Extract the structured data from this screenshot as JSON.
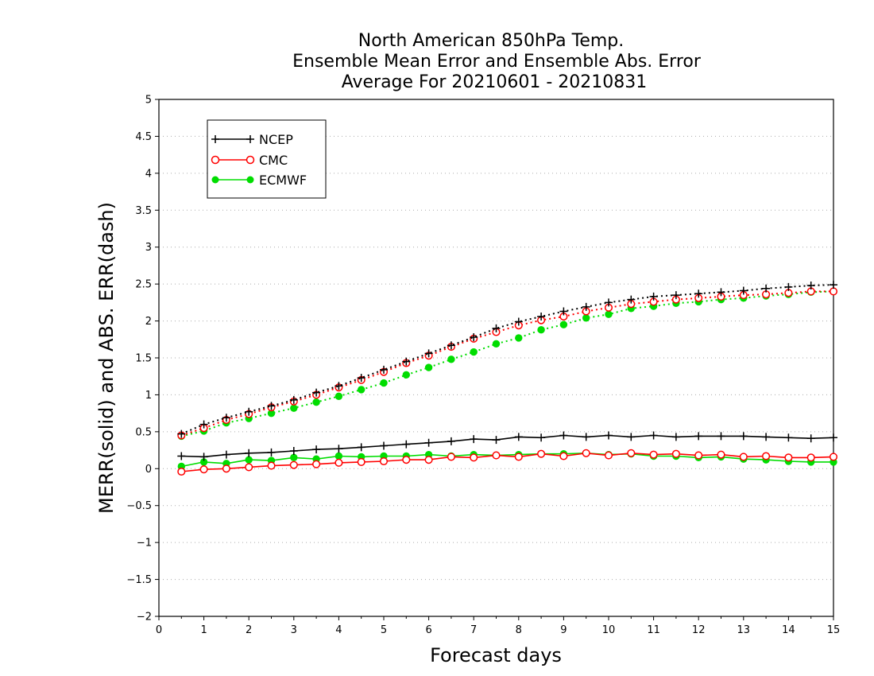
{
  "chart_data": {
    "type": "line",
    "title": [
      "North American 850hPa Temp.",
      "Ensemble Mean Error and Ensemble Abs. Error",
      "Average For 20210601 - 20210831"
    ],
    "xlabel": "Forecast days",
    "ylabel": "MERR(solid) and ABS. ERR(dash)",
    "xlim": [
      0,
      15
    ],
    "ylim": [
      -2,
      5
    ],
    "xticks": [
      "0",
      "1",
      "2",
      "3",
      "4",
      "5",
      "6",
      "7",
      "8",
      "9",
      "10",
      "11",
      "12",
      "13",
      "14",
      "15"
    ],
    "yticks": [
      "5",
      "4.5",
      "4",
      "3.5",
      "3",
      "2.5",
      "2",
      "1.5",
      "1",
      "0.5",
      "0",
      "-0.5",
      "-1",
      "-1.5",
      "-2"
    ],
    "grid": "horizontal dotted",
    "legend_position": "top-left",
    "x": [
      0.5,
      1,
      1.5,
      2,
      2.5,
      3,
      3.5,
      4,
      4.5,
      5,
      5.5,
      6,
      6.5,
      7,
      7.5,
      8,
      8.5,
      9,
      9.5,
      10,
      10.5,
      11,
      11.5,
      12,
      12.5,
      13,
      13.5,
      14,
      14.5,
      15
    ],
    "series": [
      {
        "name": "NCEP",
        "color": "#000000",
        "marker": "plus",
        "merr": [
          0.17,
          0.16,
          0.19,
          0.21,
          0.22,
          0.24,
          0.26,
          0.27,
          0.29,
          0.31,
          0.33,
          0.35,
          0.37,
          0.4,
          0.39,
          0.43,
          0.42,
          0.45,
          0.43,
          0.45,
          0.43,
          0.45,
          0.43,
          0.44,
          0.44,
          0.44,
          0.43,
          0.42,
          0.41,
          0.42
        ],
        "abs_err": [
          0.47,
          0.6,
          0.69,
          0.77,
          0.85,
          0.93,
          1.03,
          1.12,
          1.23,
          1.34,
          1.45,
          1.56,
          1.67,
          1.78,
          1.9,
          1.99,
          2.06,
          2.13,
          2.19,
          2.25,
          2.29,
          2.33,
          2.35,
          2.37,
          2.39,
          2.41,
          2.44,
          2.46,
          2.48,
          2.49
        ]
      },
      {
        "name": "CMC",
        "color": "#ff0000",
        "marker": "open-circle",
        "merr": [
          -0.04,
          -0.01,
          0.0,
          0.02,
          0.04,
          0.05,
          0.06,
          0.08,
          0.09,
          0.1,
          0.12,
          0.12,
          0.16,
          0.15,
          0.18,
          0.16,
          0.2,
          0.17,
          0.21,
          0.18,
          0.21,
          0.19,
          0.2,
          0.18,
          0.19,
          0.16,
          0.17,
          0.15,
          0.15,
          0.16
        ],
        "abs_err": [
          0.45,
          0.55,
          0.66,
          0.74,
          0.83,
          0.91,
          1.0,
          1.1,
          1.2,
          1.31,
          1.43,
          1.53,
          1.65,
          1.76,
          1.85,
          1.94,
          2.01,
          2.06,
          2.13,
          2.18,
          2.23,
          2.26,
          2.29,
          2.31,
          2.33,
          2.35,
          2.36,
          2.38,
          2.4,
          2.4
        ]
      },
      {
        "name": "ECMWF",
        "color": "#00dd00",
        "marker": "filled-circle",
        "merr": [
          0.03,
          0.09,
          0.07,
          0.12,
          0.11,
          0.15,
          0.13,
          0.17,
          0.16,
          0.17,
          0.17,
          0.19,
          0.17,
          0.19,
          0.18,
          0.19,
          0.2,
          0.2,
          0.21,
          0.19,
          0.2,
          0.17,
          0.17,
          0.15,
          0.16,
          0.13,
          0.12,
          0.1,
          0.09,
          0.09
        ],
        "abs_err": [
          0.44,
          0.51,
          0.62,
          0.68,
          0.75,
          0.82,
          0.9,
          0.98,
          1.07,
          1.16,
          1.27,
          1.37,
          1.48,
          1.58,
          1.69,
          1.77,
          1.88,
          1.95,
          2.04,
          2.09,
          2.17,
          2.2,
          2.24,
          2.26,
          2.29,
          2.31,
          2.34,
          2.36,
          2.39,
          2.4
        ]
      }
    ]
  }
}
